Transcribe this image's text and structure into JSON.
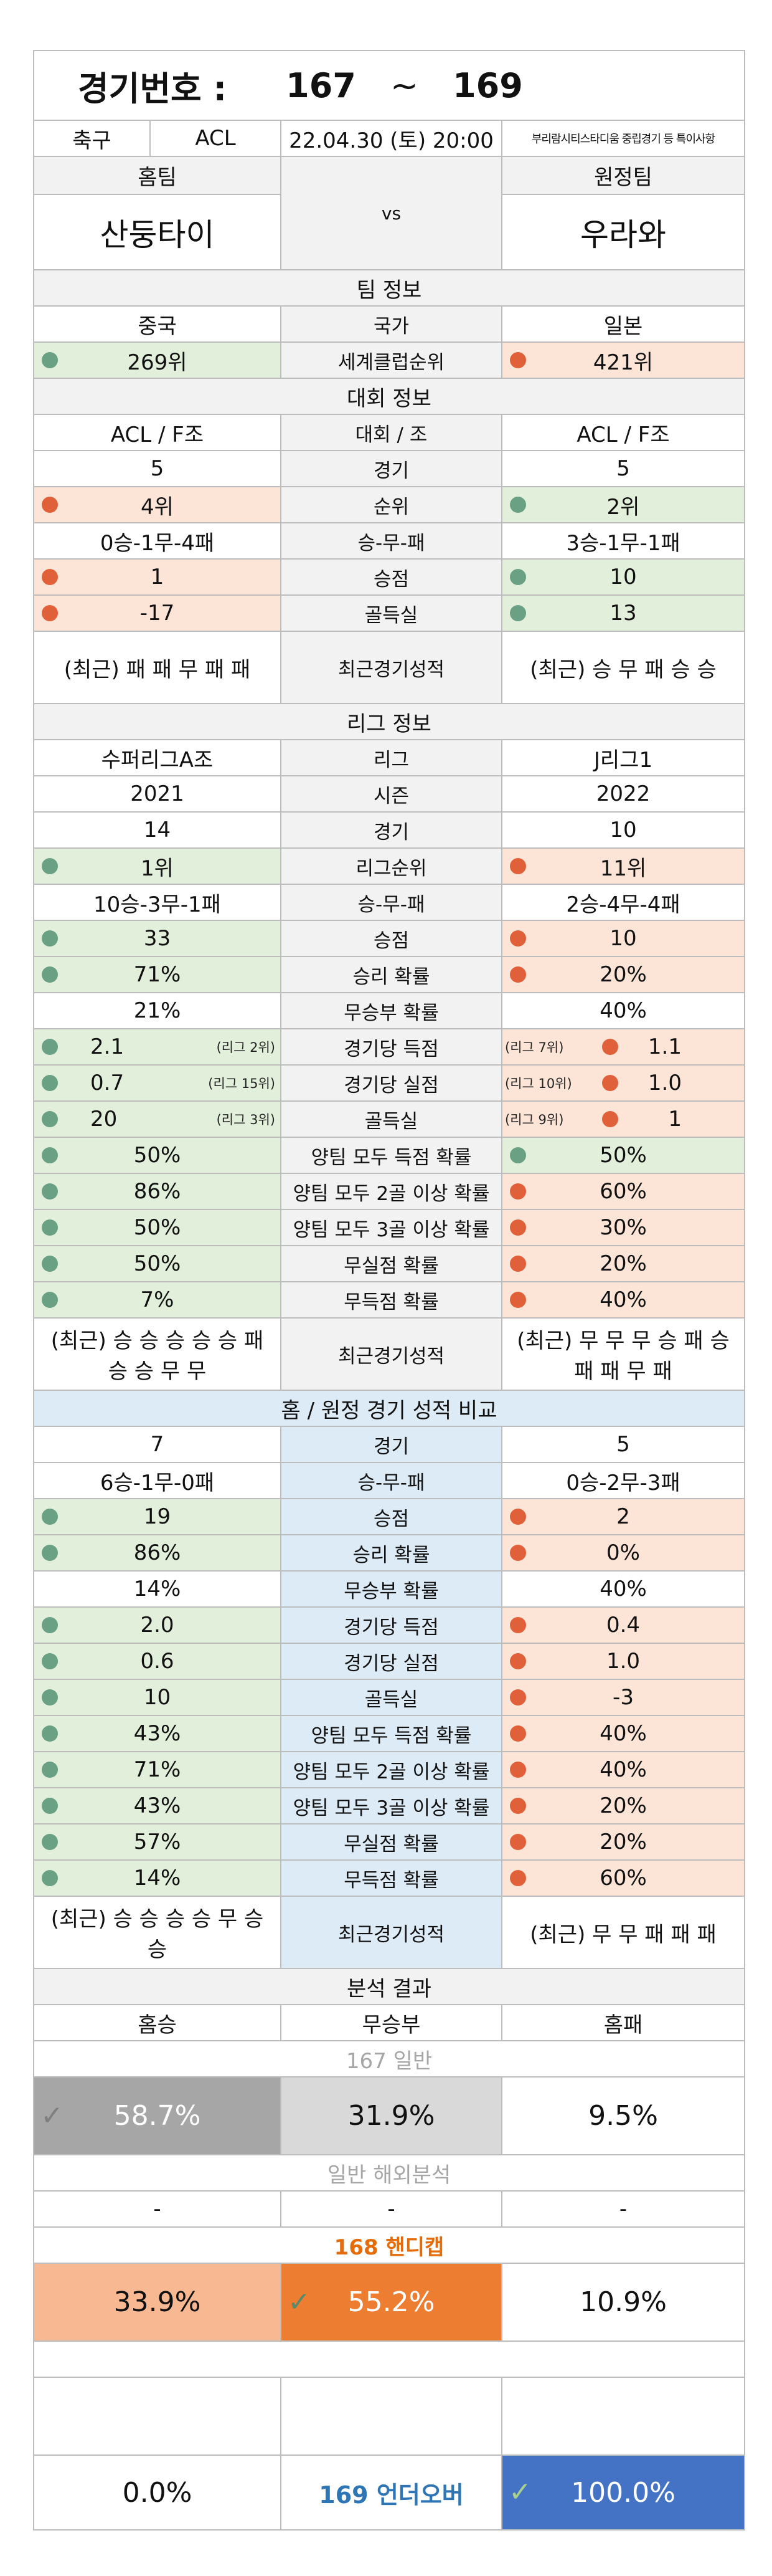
{
  "header": {
    "label": "경기번호 :",
    "from": "167",
    "tilde": "~",
    "to": "169"
  },
  "match": {
    "sport": "축구",
    "league": "ACL",
    "datetime": "22.04.30 (토) 20:00",
    "note": "부리람시티스타디움 중립경기 등 특이사항"
  },
  "teams": {
    "home_label": "홈팀",
    "away_label": "원정팀",
    "vs": "vs",
    "home": "산둥타이",
    "away": "우라와"
  },
  "team_info": {
    "title": "팀 정보",
    "rows": [
      {
        "left": "중국",
        "mid": "국가",
        "right": "일본"
      },
      {
        "left": "269위",
        "mid": "세계클럽순위",
        "right": "421위"
      }
    ]
  },
  "tournament": {
    "title": "대회 정보",
    "rows": [
      {
        "left": "ACL / F조",
        "mid": "대회 / 조",
        "right": "ACL / F조"
      },
      {
        "left": "5",
        "mid": "경기",
        "right": "5"
      },
      {
        "left": "4위",
        "mid": "순위",
        "right": "2위"
      },
      {
        "left": "0승-1무-4패",
        "mid": "승-무-패",
        "right": "3승-1무-1패"
      },
      {
        "left": "1",
        "mid": "승점",
        "right": "10"
      },
      {
        "left": "-17",
        "mid": "골득실",
        "right": "13"
      },
      {
        "left": "(최근) 패 패 무 패 패",
        "mid": "최근경기성적",
        "right": "(최근) 승 무 패 승 승"
      }
    ]
  },
  "league": {
    "title": "리그 정보",
    "rows": [
      {
        "left": "수퍼리그A조",
        "mid": "리그",
        "right": "J리그1"
      },
      {
        "left": "2021",
        "mid": "시즌",
        "right": "2022"
      },
      {
        "left": "14",
        "mid": "경기",
        "right": "10"
      },
      {
        "left": "1위",
        "mid": "리그순위",
        "right": "11위"
      },
      {
        "left": "10승-3무-1패",
        "mid": "승-무-패",
        "right": "2승-4무-4패"
      },
      {
        "left": "33",
        "mid": "승점",
        "right": "10"
      },
      {
        "left": "71%",
        "mid": "승리 확률",
        "right": "20%"
      },
      {
        "left": "21%",
        "mid": "무승부 확률",
        "right": "40%"
      },
      {
        "left": "2.1",
        "left_rank": "(리그 2위)",
        "mid": "경기당 득점",
        "right": "1.1",
        "right_rank": "(리그 7위)"
      },
      {
        "left": "0.7",
        "left_rank": "(리그 15위)",
        "mid": "경기당 실점",
        "right": "1.0",
        "right_rank": "(리그 10위)"
      },
      {
        "left": "20",
        "left_rank": "(리그 3위)",
        "mid": "골득실",
        "right": "1",
        "right_rank": "(리그 9위)"
      },
      {
        "left": "50%",
        "mid": "양팀 모두 득점 확률",
        "right": "50%"
      },
      {
        "left": "86%",
        "mid": "양팀 모두 2골 이상 확률",
        "right": "60%"
      },
      {
        "left": "50%",
        "mid": "양팀 모두 3골 이상 확률",
        "right": "30%"
      },
      {
        "left": "50%",
        "mid": "무실점 확률",
        "right": "20%"
      },
      {
        "left": "7%",
        "mid": "무득점 확률",
        "right": "40%"
      },
      {
        "left": "(최근) 승 승 승 승 승 패 승 승 무 무",
        "mid": "최근경기성적",
        "right": "(최근) 무 무 무 승 패 승 패 패 무 패"
      }
    ]
  },
  "homeaway": {
    "title": "홈 / 원정 경기 성적 비교",
    "rows": [
      {
        "left": "7",
        "mid": "경기",
        "right": "5"
      },
      {
        "left": "6승-1무-0패",
        "mid": "승-무-패",
        "right": "0승-2무-3패"
      },
      {
        "left": "19",
        "mid": "승점",
        "right": "2"
      },
      {
        "left": "86%",
        "mid": "승리 확률",
        "right": "0%"
      },
      {
        "left": "14%",
        "mid": "무승부 확률",
        "right": "40%"
      },
      {
        "left": "2.0",
        "mid": "경기당 득점",
        "right": "0.4"
      },
      {
        "left": "0.6",
        "mid": "경기당 실점",
        "right": "1.0"
      },
      {
        "left": "10",
        "mid": "골득실",
        "right": "-3"
      },
      {
        "left": "43%",
        "mid": "양팀 모두 득점 확률",
        "right": "40%"
      },
      {
        "left": "71%",
        "mid": "양팀 모두 2골 이상 확률",
        "right": "40%"
      },
      {
        "left": "43%",
        "mid": "양팀 모두 3골 이상 확률",
        "right": "20%"
      },
      {
        "left": "57%",
        "mid": "무실점 확률",
        "right": "20%"
      },
      {
        "left": "14%",
        "mid": "무득점 확률",
        "right": "60%"
      },
      {
        "left": "(최근) 승 승 승 승 무 승 승",
        "mid": "최근경기성적",
        "right": "(최근) 무 무 패 패 패"
      }
    ]
  },
  "analysis": {
    "title": "분석 결과",
    "home_win": "홈승",
    "draw": "무승부",
    "home_lose": "홈패",
    "g167": {
      "title": "167 일반",
      "home": "58.7%",
      "draw": "31.9%",
      "lose": "9.5%"
    },
    "overseas": {
      "title": "일반 해외분석",
      "home": "-",
      "draw": "-",
      "lose": "-"
    },
    "g168": {
      "title": "168 핸디캡",
      "home": "33.9%",
      "draw": "55.2%",
      "lose": "10.9%"
    },
    "g169": {
      "left": "0.0%",
      "mid": "169 언더오버",
      "right": "100.0%"
    }
  },
  "icons": {
    "check": "check-icon",
    "dot_good": "green-dot-icon",
    "dot_bad": "red-dot-icon"
  },
  "colors": {
    "good": "#6aa084",
    "bad": "#e0603a",
    "green_bg": "#e2efda",
    "orange_bg": "#fce4d6",
    "blue_bg": "#ddebf7",
    "accent_orange": "#ed7d31",
    "accent_blue": "#4472c4"
  }
}
